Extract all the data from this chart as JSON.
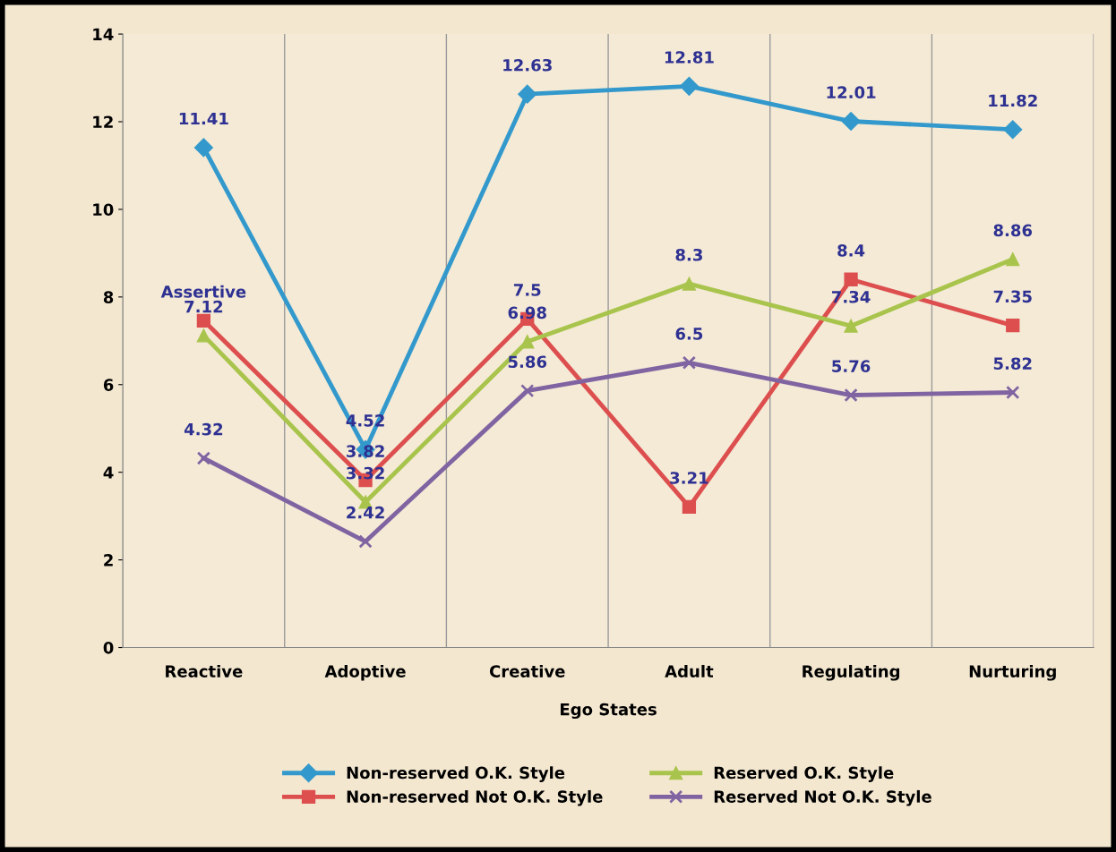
{
  "chart_data": {
    "type": "line",
    "xlabel": "Ego States",
    "categories": [
      "Reactive",
      "Adoptive",
      "Creative",
      "Adult",
      "Regulating",
      "Nurturing"
    ],
    "series": [
      {
        "name": "Non-reserved O.K. Style",
        "color": "#3399cc",
        "marker": "diamond",
        "values": [
          11.41,
          4.52,
          12.63,
          12.81,
          12.01,
          11.82
        ],
        "value_labels": [
          "11.41",
          "4.52",
          "12.63",
          "12.81",
          "12.01",
          "11.82"
        ]
      },
      {
        "name": "Non-reserved Not O.K. Style",
        "color": "#dd4f4f",
        "marker": "square",
        "values": [
          7.46,
          3.82,
          7.5,
          3.21,
          8.4,
          7.35
        ],
        "value_labels": [
          "Assertive",
          "3.82",
          "7.5",
          "3.21",
          "8.4",
          "7.35"
        ]
      },
      {
        "name": "Reserved O.K. Style",
        "color": "#a9c44c",
        "marker": "triangle",
        "values": [
          7.12,
          3.32,
          6.98,
          8.3,
          7.34,
          8.86
        ],
        "value_labels": [
          "7.12",
          "3.32",
          "6.98",
          "8.3",
          "7.34",
          "8.86"
        ]
      },
      {
        "name": "Reserved Not O.K. Style",
        "color": "#8064a2",
        "marker": "cross",
        "values": [
          4.32,
          2.42,
          5.86,
          6.5,
          5.76,
          5.82
        ],
        "value_labels": [
          "4.32",
          "2.42",
          "5.86",
          "6.5",
          "5.76",
          "5.82"
        ]
      }
    ],
    "ylim": [
      0,
      14
    ],
    "yticks": [
      0,
      2,
      4,
      6,
      8,
      10,
      12,
      14
    ],
    "grid": "x",
    "legend": "bottom",
    "line_style": "solid"
  }
}
